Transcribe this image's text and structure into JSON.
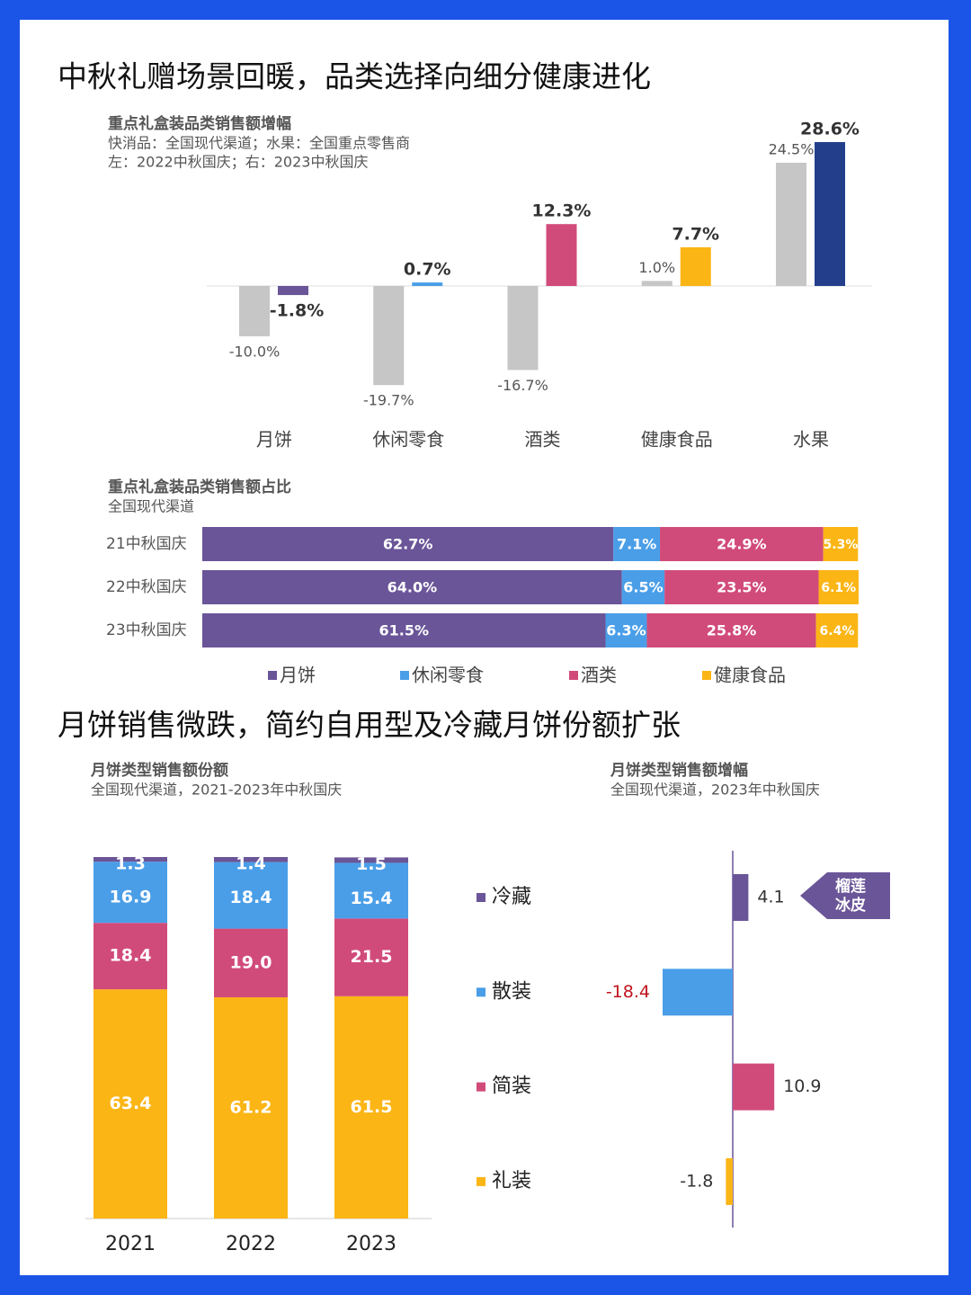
{
  "headlines": [
    "中秋礼赠场景回暖，品类选择向细分健康进化",
    "月饼销售微跌，简约自用型及冷藏月饼份额扩张"
  ],
  "chart_data": [
    {
      "type": "bar",
      "title": "重点礼盒装品类销售额增幅",
      "subtitle": [
        "快消品：全国现代渠道；水果：全国重点零售商",
        "左：2022中秋国庆；右：2023中秋国庆"
      ],
      "categories": [
        "月饼",
        "休闲零食",
        "酒类",
        "健康食品",
        "水果"
      ],
      "series": [
        {
          "color": "#c6c6c6",
          "values": [
            -10.0,
            -19.7,
            -16.7,
            1.0,
            24.5
          ],
          "value_labels": [
            "-10.0%",
            "-19.7%",
            "-16.7%",
            "1.0%",
            "24.5%"
          ]
        },
        {
          "colors": [
            "#6a5598",
            "#4a9ee8",
            "#d14b7a",
            "#fbb515",
            "#233f8c"
          ],
          "values": [
            -1.8,
            0.7,
            12.3,
            7.7,
            28.6
          ],
          "value_labels": [
            "-1.8%",
            "0.7%",
            "12.3%",
            "7.7%",
            "28.6%"
          ]
        }
      ]
    },
    {
      "type": "stacked_bar",
      "orientation": "horizontal",
      "title": "重点礼盒装品类销售额占比",
      "subtitle": [
        "全国现代渠道"
      ],
      "categories": [
        "21中秋国庆",
        "22中秋国庆",
        "23中秋国庆"
      ],
      "series": [
        {
          "name": "月饼",
          "color": "#6a5598",
          "values": [
            62.7,
            64.0,
            61.5
          ],
          "value_labels": [
            "62.7%",
            "64.0%",
            "61.5%"
          ]
        },
        {
          "name": "休闲零食",
          "color": "#4a9ee8",
          "values": [
            7.1,
            6.5,
            6.3
          ],
          "value_labels": [
            "7.1%",
            "6.5%",
            "6.3%"
          ]
        },
        {
          "name": "酒类",
          "color": "#d14b7a",
          "values": [
            24.9,
            23.5,
            25.8
          ],
          "value_labels": [
            "24.9%",
            "23.5%",
            "25.8%"
          ]
        },
        {
          "name": "健康食品",
          "color": "#fbb515",
          "values": [
            5.3,
            6.1,
            6.4
          ],
          "value_labels": [
            "5.3%",
            "6.1%",
            "6.4%"
          ]
        }
      ]
    },
    {
      "type": "stacked_bar",
      "orientation": "vertical",
      "title": "月饼类型销售额份额",
      "subtitle": [
        "全国现代渠道，2021-2023年中秋国庆"
      ],
      "categories": [
        "2021",
        "2022",
        "2023"
      ],
      "series": [
        {
          "color": "#fbb515",
          "values": [
            63.4,
            61.2,
            61.5
          ],
          "value_labels": [
            "63.4",
            "61.2",
            "61.5"
          ]
        },
        {
          "color": "#d14b7a",
          "values": [
            18.4,
            19.0,
            21.5
          ],
          "value_labels": [
            "18.4",
            "19.0",
            "21.5"
          ]
        },
        {
          "color": "#4a9ee8",
          "values": [
            16.9,
            18.4,
            15.4
          ],
          "value_labels": [
            "16.9",
            "18.4",
            "15.4"
          ]
        },
        {
          "color": "#6a5598",
          "values": [
            1.3,
            1.4,
            1.5
          ],
          "value_labels": [
            "1.3",
            "1.4",
            "1.5"
          ]
        }
      ]
    },
    {
      "type": "bar",
      "orientation": "horizontal",
      "title": "月饼类型销售额增幅",
      "subtitle": [
        "全国现代渠道，2023年中秋国庆"
      ],
      "categories": [
        "冷藏",
        "散装",
        "简装",
        "礼装"
      ],
      "colors": [
        "#6a5598",
        "#4a9ee8",
        "#d14b7a",
        "#fbb515"
      ],
      "values": [
        4.1,
        -18.4,
        10.9,
        -1.8
      ],
      "label_colors": [
        "#333333",
        "#c0141e",
        "#333333",
        "#333333"
      ],
      "annotation": [
        "榴莲",
        "冰皮"
      ]
    }
  ]
}
